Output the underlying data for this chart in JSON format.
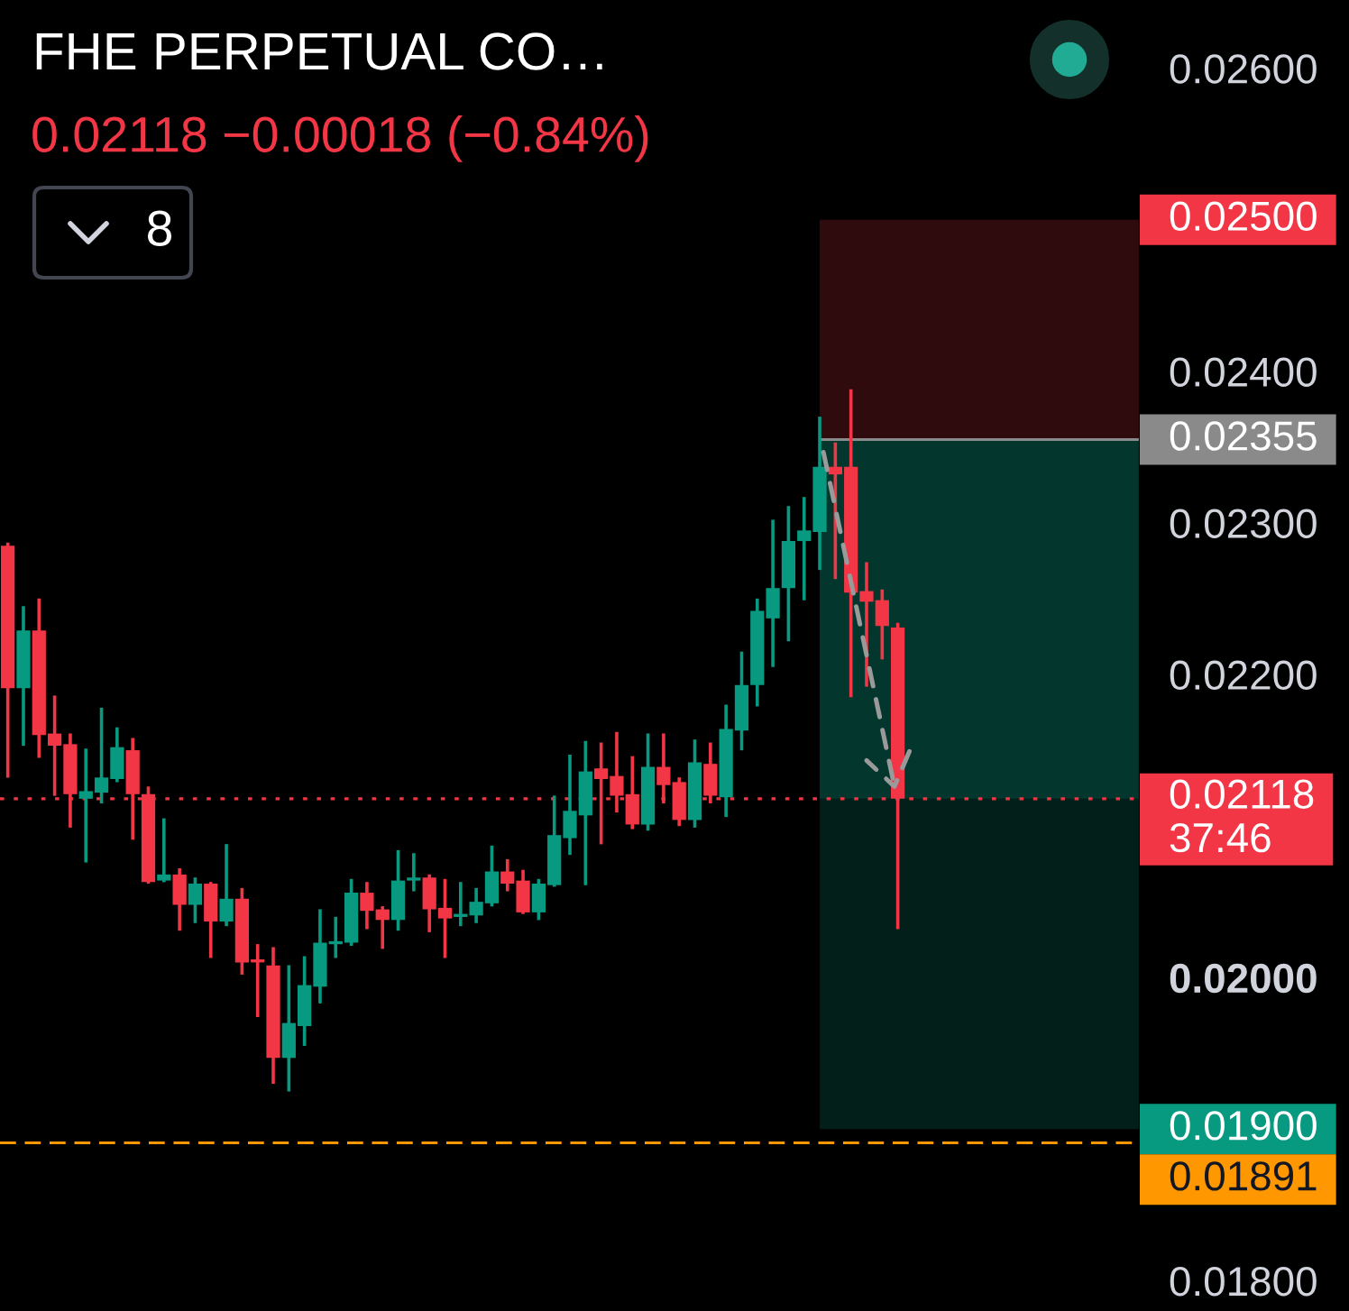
{
  "chart_data": {
    "type": "candlestick",
    "title": "FHE PERPETUAL CO…",
    "subtitle": "0.02118 −0.00018 (−0.84%)",
    "categories": [
      null,
      null,
      null,
      null,
      null,
      null,
      null,
      null,
      null,
      null,
      null,
      null,
      null,
      null,
      null,
      null,
      null,
      null,
      null,
      null,
      null,
      null,
      null,
      null,
      null,
      null,
      null,
      null,
      null,
      null,
      null,
      null,
      null,
      null,
      null,
      null,
      null,
      null,
      null,
      null,
      null,
      null,
      null,
      null,
      null,
      null,
      null,
      null,
      null,
      null,
      null,
      null,
      null,
      null,
      null,
      null,
      null,
      null,
      null,
      null,
      null,
      null,
      null,
      null,
      null,
      null,
      null,
      null,
      null,
      null,
      null,
      null,
      null
    ],
    "ohlc": [
      [
        0.02285,
        0.02286,
        0.02133,
        0.02191
      ],
      [
        0.02191,
        0.02244,
        0.02154,
        0.02229
      ],
      [
        0.02229,
        0.02249,
        0.02146,
        0.0216
      ],
      [
        0.02161,
        0.02185,
        0.02121,
        0.02153
      ],
      [
        0.02154,
        0.0216,
        0.021,
        0.02121
      ],
      [
        0.02118,
        0.0215,
        0.02077,
        0.02123
      ],
      [
        0.02122,
        0.02177,
        0.02116,
        0.02132
      ],
      [
        0.02131,
        0.02164,
        0.0213,
        0.02152
      ],
      [
        0.0215,
        0.02157,
        0.02092,
        0.02121
      ],
      [
        0.02121,
        0.02125,
        0.02063,
        0.02063
      ],
      [
        0.02064,
        0.02104,
        0.02064,
        0.02068
      ],
      [
        0.02068,
        0.02071,
        0.02032,
        0.02048
      ],
      [
        0.02048,
        0.02065,
        0.02037,
        0.02062
      ],
      [
        0.02062,
        0.02062,
        0.02014,
        0.02037
      ],
      [
        0.02037,
        0.02087,
        0.02035,
        0.02052
      ],
      [
        0.02052,
        0.02058,
        0.02003,
        0.0201
      ],
      [
        0.02012,
        0.02021,
        0.01975,
        0.0201
      ],
      [
        0.02008,
        0.02019,
        0.01931,
        0.01947
      ],
      [
        0.01947,
        0.02007,
        0.01926,
        0.0197
      ],
      [
        0.01968,
        0.02013,
        0.01956,
        0.01995
      ],
      [
        0.01994,
        0.02044,
        0.01984,
        0.02023
      ],
      [
        0.02022,
        0.02039,
        0.02014,
        0.02024
      ],
      [
        0.02023,
        0.02064,
        0.02022,
        0.02056
      ],
      [
        0.02056,
        0.02062,
        0.02033,
        0.02044
      ],
      [
        0.02045,
        0.02046,
        0.0202,
        0.02038
      ],
      [
        0.02038,
        0.02083,
        0.02032,
        0.02064
      ],
      [
        0.02064,
        0.02081,
        0.02058,
        0.02066
      ],
      [
        0.02066,
        0.02067,
        0.02031,
        0.02045
      ],
      [
        0.02046,
        0.02064,
        0.02014,
        0.02039
      ],
      [
        0.0204,
        0.02062,
        0.02035,
        0.02042
      ],
      [
        0.02041,
        0.02058,
        0.02037,
        0.0205
      ],
      [
        0.02049,
        0.02086,
        0.02048,
        0.0207
      ],
      [
        0.0207,
        0.02077,
        0.02058,
        0.02062
      ],
      [
        0.02064,
        0.0207,
        0.02043,
        0.02043
      ],
      [
        0.02043,
        0.02064,
        0.02039,
        0.02062
      ],
      [
        0.02061,
        0.02119,
        0.02061,
        0.02094
      ],
      [
        0.02092,
        0.02146,
        0.02082,
        0.0211
      ],
      [
        0.02107,
        0.02155,
        0.02062,
        0.02136
      ],
      [
        0.02138,
        0.02154,
        0.02089,
        0.02131
      ],
      [
        0.02133,
        0.02161,
        0.0211,
        0.0212
      ],
      [
        0.02121,
        0.02145,
        0.02099,
        0.02101
      ],
      [
        0.02101,
        0.0216,
        0.02098,
        0.02139
      ],
      [
        0.02139,
        0.0216,
        0.02116,
        0.02127
      ],
      [
        0.02129,
        0.02131,
        0.02101,
        0.02104
      ],
      [
        0.02104,
        0.02156,
        0.021,
        0.02142
      ],
      [
        0.02141,
        0.02154,
        0.02116,
        0.0212
      ],
      [
        0.02119,
        0.02179,
        0.02107,
        0.02164
      ],
      [
        0.02163,
        0.02214,
        0.02151,
        0.02193
      ],
      [
        0.02193,
        0.02249,
        0.0218,
        0.02242
      ],
      [
        0.02237,
        0.02301,
        0.02206,
        0.02257
      ],
      [
        0.02257,
        0.0231,
        0.02223,
        0.02288
      ],
      [
        0.02288,
        0.02316,
        0.0225,
        0.02295
      ],
      [
        0.02294,
        0.02369,
        0.0227,
        0.02337
      ],
      [
        0.02337,
        0.02352,
        0.02264,
        0.02332
      ],
      [
        0.02337,
        0.02387,
        0.02186,
        0.02254
      ],
      [
        0.02255,
        0.02273,
        0.02193,
        0.02248
      ],
      [
        0.02249,
        0.02255,
        0.02211,
        0.02232
      ],
      [
        0.02231,
        0.02233,
        0.02033,
        0.02118
      ],
      null,
      null,
      null,
      null,
      null,
      null,
      null,
      null,
      null,
      null,
      null,
      null,
      null,
      null,
      null
    ],
    "colors": [
      "#f23645",
      "#089981",
      "#f23645",
      "#f23645",
      "#f23645",
      "#089981",
      "#089981",
      "#089981",
      "#f23645",
      "#f23645",
      "#089981",
      "#f23645",
      "#089981",
      "#f23645",
      "#089981",
      "#f23645",
      "#f23645",
      "#f23645",
      "#089981",
      "#089981",
      "#089981",
      "#089981",
      "#089981",
      "#f23645",
      "#f23645",
      "#089981",
      "#089981",
      "#f23645",
      "#f23645",
      "#089981",
      "#089981",
      "#089981",
      "#f23645",
      "#f23645",
      "#089981",
      "#089981",
      "#089981",
      "#089981",
      "#f23645",
      "#f23645",
      "#f23645",
      "#089981",
      "#f23645",
      "#f23645",
      "#089981",
      "#f23645",
      "#089981",
      "#089981",
      "#089981",
      "#089981",
      "#089981",
      "#089981",
      "#089981",
      "#f23645",
      "#f23645",
      "#f23645",
      "#f23645",
      "#f23645",
      null,
      null,
      null,
      null,
      null,
      null,
      null,
      null,
      null,
      null,
      null,
      null,
      null,
      null,
      null
    ],
    "ylim": [
      0.0178,
      0.02645
    ],
    "yticks": [
      {
        "value": 0.018,
        "label": "0.01800"
      },
      {
        "value": 0.02,
        "label": "0.02000"
      },
      {
        "value": 0.022,
        "label": "0.02200"
      },
      {
        "value": 0.023,
        "label": "0.02300"
      },
      {
        "value": 0.024,
        "label": "0.02400"
      },
      {
        "value": 0.026,
        "label": "0.02600"
      }
    ],
    "tick_labels": "y",
    "bands": [
      {
        "axis": "y",
        "from": 0.02355,
        "to": 0.025,
        "label": "0.02500",
        "color": "#f23645"
      },
      {
        "axis": "y",
        "from": 0.02355,
        "to": 0.019,
        "label": "0.01900",
        "color": "#089981"
      },
      {
        "axis": "y",
        "from": 0.02355,
        "to": 0.02118,
        "color": "#089981"
      }
    ],
    "ref_lines": [
      {
        "axis": "y",
        "value": 0.02355,
        "label": "0.02355",
        "color": "#8a8a8a",
        "line_style": "solid"
      },
      {
        "axis": "y",
        "value": 0.02118,
        "label": "0.02118\n37:46",
        "color": "#f23645",
        "line_style": "dotted"
      },
      {
        "axis": "y",
        "value": 0.01891,
        "label": "0.01891",
        "color": "#ff9800",
        "line_style": "dashed"
      }
    ],
    "annotations": [
      "8"
    ]
  }
}
